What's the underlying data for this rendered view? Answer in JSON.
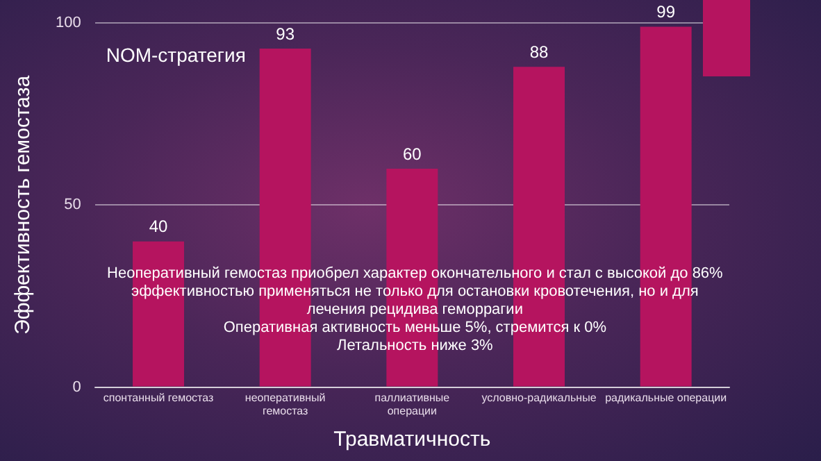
{
  "chart_data": {
    "type": "bar",
    "categories": [
      "спонтанный гемостаз",
      "неоперативный гемостаз",
      "паллиативные операции",
      "условно-радикальные",
      "радикальные операции"
    ],
    "values": [
      40,
      93,
      60,
      88,
      99
    ],
    "color": "#b5145f",
    "ylim": [
      0,
      100
    ],
    "yticks": [
      0,
      50,
      100
    ],
    "grid": "y",
    "xlabel": "Травматичность",
    "ylabel": "Эффективность гемостаза",
    "data_labels": true,
    "legend": false,
    "annotations": [
      "NOM-стратегия",
      "Неоперативный гемостаз приобрел характер окончательного и стал с высокой до 86% эффективностью применяться не только для остановки кровотечения, но и для лечения рецидива геморрагии",
      "Оперативная активность меньше 5%, стремится к 0%",
      "Летальность ниже 3%"
    ]
  }
}
